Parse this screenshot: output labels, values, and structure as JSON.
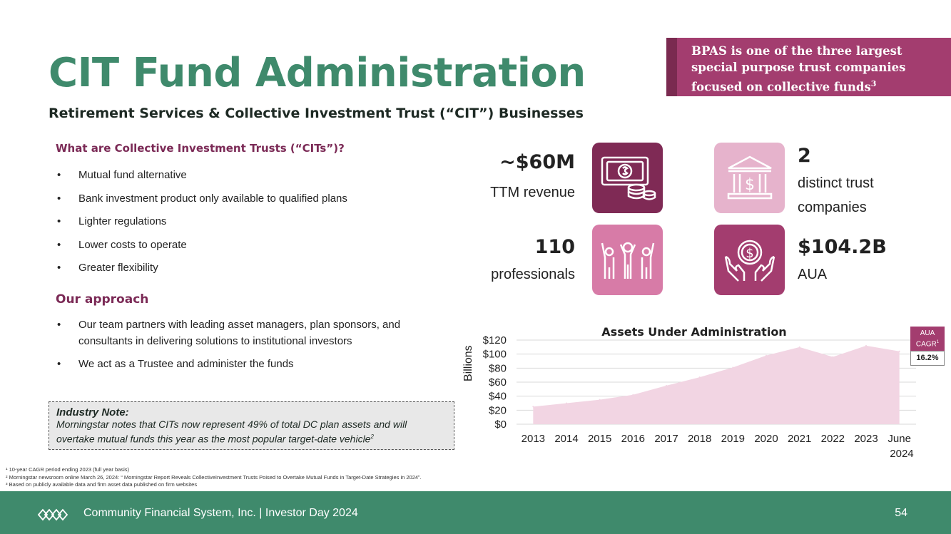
{
  "title": "CIT Fund Administration",
  "subtitle": "Retirement Services & Collective Investment Trust (“CIT”) Businesses",
  "callout": {
    "lines": [
      "BPAS is one of the three largest",
      "special purpose trust companies",
      "focused on collective funds"
    ],
    "sup": "3"
  },
  "what_are": {
    "heading": "What are Collective Investment Trusts (“CITs”)?",
    "items": [
      "Mutual fund alternative",
      "Bank investment product only available to qualified plans",
      "Lighter regulations",
      "Lower costs to operate",
      "Greater flexibility"
    ]
  },
  "approach": {
    "heading": "Our approach",
    "items": [
      "Our team partners with leading asset managers, plan sponsors, and consultants in delivering solutions to institutional investors",
      "We act as a Trustee and administer the funds"
    ]
  },
  "industry_note": {
    "heading": "Industry Note:",
    "text": "Morningstar notes that CITs now represent 49% of total DC plan assets and will overtake mutual funds this year as the most popular target-date vehicle",
    "sup": "2"
  },
  "stats": {
    "revenue": {
      "value": "~$60M",
      "label": "TTM revenue",
      "icon": "money-coins-icon",
      "color": "#7f2a55"
    },
    "trusts": {
      "value": "2",
      "label_line1": "distinct trust",
      "label_line2": "companies",
      "icon": "bank-dollar-icon",
      "color": "#e6b3cc"
    },
    "professionals": {
      "value": "110",
      "label": "professionals",
      "icon": "people-celebrating-icon",
      "color": "#d77ba7"
    },
    "aua": {
      "value": "$104.2B",
      "label": "AUA",
      "icon": "hands-dollar-coin-icon",
      "color": "#a33d6f"
    }
  },
  "cagr": {
    "label_line1": "AUA",
    "label_line2": "CAGR",
    "sup": "1",
    "value": "16.2%"
  },
  "chart_data": {
    "type": "area",
    "title": "Assets Under Administration",
    "ylabel": "Billions",
    "categories": [
      "2013",
      "2014",
      "2015",
      "2016",
      "2017",
      "2018",
      "2019",
      "2020",
      "2021",
      "2022",
      "2023",
      "June 2024"
    ],
    "values": [
      25,
      30,
      35,
      42,
      55,
      67,
      81,
      98,
      110,
      96,
      112,
      104
    ],
    "y_ticks": [
      "$0",
      "$20",
      "$40",
      "$60",
      "$80",
      "$100",
      "$120"
    ],
    "ylim": [
      0,
      120
    ],
    "grid": true,
    "fill_color": "#f2d5e3"
  },
  "footnotes": [
    "¹ 10-year CAGR period ending 2023 (full year basis)",
    "² Morningstar newsroom online March 26, 2024: “ Morningstar Report Reveals CollectiveInvestment Trusts Poised to Overtake Mutual Funds in Target-Date Strategies in 2024”.",
    "³  Based on publicly available data and firm asset data published on firm websites"
  ],
  "footer": {
    "text": "Community Financial System, Inc.  |  Investor Day 2024",
    "page": "54"
  }
}
